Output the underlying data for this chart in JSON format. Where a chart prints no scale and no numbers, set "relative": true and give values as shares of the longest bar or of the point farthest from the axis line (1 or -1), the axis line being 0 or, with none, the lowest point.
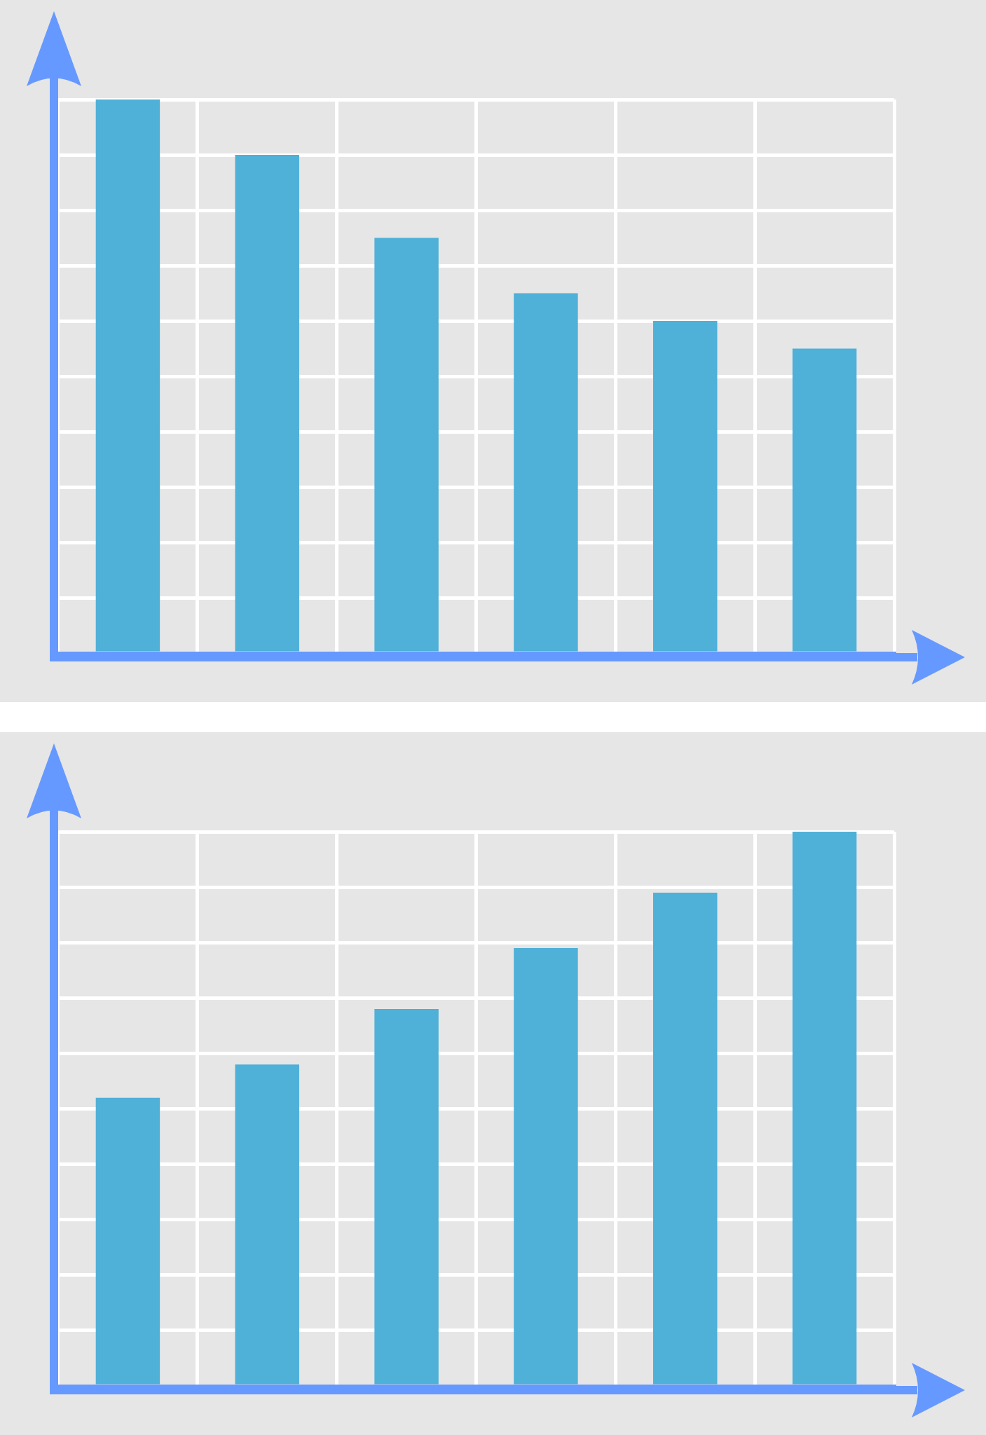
{
  "chart_data": [
    {
      "type": "bar",
      "categories": [
        null,
        null,
        null,
        null,
        null,
        null
      ],
      "values": [
        1,
        0.9,
        0.75,
        0.65,
        0.6,
        0.55
      ],
      "color": "#4fb0d8",
      "relative": true,
      "grid": true
    },
    {
      "type": "bar",
      "categories": [
        null,
        null,
        null,
        null,
        null,
        null
      ],
      "values": [
        0.52,
        0.58,
        0.68,
        0.79,
        0.89,
        1
      ],
      "color": "#4fb0d8",
      "relative": true,
      "grid": true
    }
  ]
}
